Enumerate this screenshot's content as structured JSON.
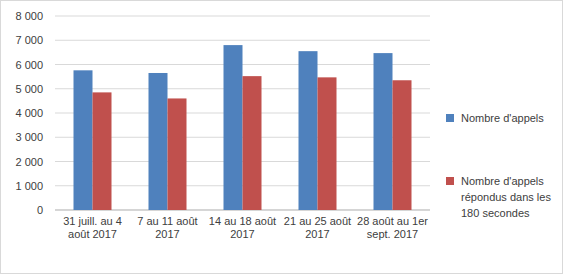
{
  "chart_data": {
    "type": "bar",
    "categories": [
      "31 juill. au 4 août 2017",
      "7 au 11 août 2017",
      "14 au 18 août 2017",
      "21 au 25 août 2017",
      "28 août au 1er sept. 2017"
    ],
    "series": [
      {
        "name": "Nombre d'appels",
        "color": "#4f81bd",
        "values": [
          5760,
          5650,
          6800,
          6550,
          6470
        ]
      },
      {
        "name": "Nombre d'appels répondus dans les 180 secondes",
        "color": "#c0504d",
        "values": [
          4850,
          4600,
          5520,
          5470,
          5350
        ]
      }
    ],
    "ylim": [
      0,
      8000
    ],
    "yticks": [
      0,
      {
        "value": 1000,
        "label": "1 000"
      },
      {
        "value": 2000,
        "label": "2 000"
      },
      {
        "value": 3000,
        "label": "3 000"
      },
      {
        "value": 4000,
        "label": "4 000"
      },
      {
        "value": 5000,
        "label": "5 000"
      },
      {
        "value": 6000,
        "label": "6 000"
      },
      {
        "value": 7000,
        "label": "7 000"
      },
      {
        "value": 8000,
        "label": "8 000"
      }
    ],
    "grid": true,
    "legend": "right"
  }
}
